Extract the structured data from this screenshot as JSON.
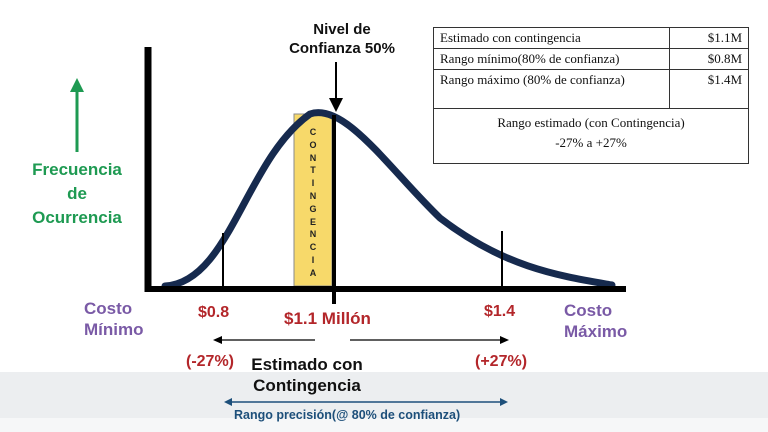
{
  "annotation": {
    "line1": "Nivel de",
    "line2": "Confianza 50%"
  },
  "y_axis": {
    "line1": "Frecuencia",
    "line2": "de",
    "line3": "Ocurrencia",
    "color": "#1e9a52"
  },
  "contingency_letters": [
    "C",
    "O",
    "N",
    "T",
    "I",
    "N",
    "G",
    "E",
    "N",
    "C",
    "I",
    "A"
  ],
  "x_labels": {
    "costo_minimo_1": "Costo",
    "costo_minimo_2": "Mínimo",
    "costo_maximo_1": "Costo",
    "costo_maximo_2": "Máximo",
    "low": "$0.8",
    "mid": "$1.1 Millón",
    "high": "$1.4"
  },
  "percent_labels": {
    "low": "(-27%)",
    "high": "(+27%)"
  },
  "estimate_label": {
    "line1": "Estimado con",
    "line2": "Contingencia"
  },
  "precision_label": "Rango precisión(@ 80% de confianza)",
  "table": {
    "rows": [
      {
        "label": "Estimado con contingencia",
        "value": "$1.1M"
      },
      {
        "label": "Rango mínimo(80% de confianza)",
        "value": "$0.8M"
      },
      {
        "label": "Rango máximo (80% de confianza)",
        "value": "$1.4M"
      }
    ],
    "summary_line1": "Rango estimado (con Contingencia)",
    "summary_line2": "-27% a +27%"
  },
  "colors": {
    "curve": "#162a4e",
    "band_fill": "#f7d96a",
    "band_stroke": "#8a8a8a",
    "red_text": "#b3262a",
    "purple_text": "#7a5aa6",
    "precision_text": "#1d4f7a"
  }
}
